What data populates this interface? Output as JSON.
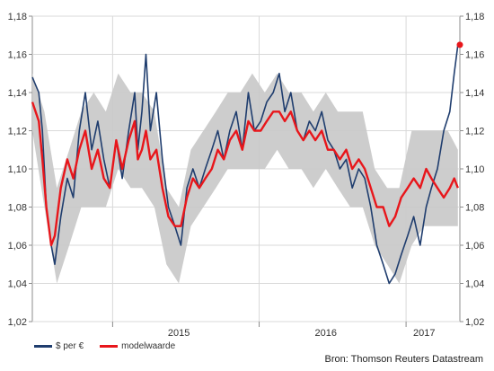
{
  "chart_data": {
    "type": "line",
    "title": "",
    "xlabel": "",
    "ylabel": "",
    "ylim": [
      1.02,
      1.18
    ],
    "y_ticks": [
      "1,02",
      "1,04",
      "1,06",
      "1,08",
      "1,10",
      "1,12",
      "1,14",
      "1,16",
      "1,18"
    ],
    "y_tick_values": [
      1.02,
      1.04,
      1.06,
      1.08,
      1.1,
      1.12,
      1.14,
      1.16,
      1.18
    ],
    "xlim": [
      "2014-06-15",
      "2017-05-15"
    ],
    "x_ticks": [
      "2015",
      "2016",
      "2017"
    ],
    "x_tick_positions": [
      "2015-06-15",
      "2016-06-15",
      "2017-02-15"
    ],
    "x_gridlines": [
      "2015-01-01",
      "2016-01-01",
      "2017-01-01"
    ],
    "grid": true,
    "legend_position": "bottom-left",
    "band": {
      "name": "",
      "color": "#c8c8c8",
      "x": [
        "2014-06-15",
        "2014-07-15",
        "2014-08-15",
        "2014-09-15",
        "2014-10-15",
        "2014-11-15",
        "2014-12-15",
        "2015-01-15",
        "2015-02-15",
        "2015-03-15",
        "2015-04-15",
        "2015-05-15",
        "2015-06-15",
        "2015-07-15",
        "2015-08-15",
        "2015-09-15",
        "2015-10-15",
        "2015-11-15",
        "2015-12-15",
        "2016-01-15",
        "2016-02-15",
        "2016-03-15",
        "2016-04-15",
        "2016-05-15",
        "2016-06-15",
        "2016-07-15",
        "2016-08-15",
        "2016-09-15",
        "2016-10-15",
        "2016-11-15",
        "2016-12-15",
        "2017-01-15",
        "2017-02-15",
        "2017-03-15",
        "2017-04-15",
        "2017-05-10"
      ],
      "lower": [
        1.12,
        1.08,
        1.04,
        1.06,
        1.08,
        1.08,
        1.08,
        1.1,
        1.09,
        1.09,
        1.08,
        1.05,
        1.04,
        1.07,
        1.08,
        1.09,
        1.1,
        1.1,
        1.1,
        1.1,
        1.11,
        1.1,
        1.1,
        1.09,
        1.1,
        1.09,
        1.08,
        1.08,
        1.06,
        1.05,
        1.04,
        1.06,
        1.07,
        1.07,
        1.07,
        1.07
      ],
      "upper": [
        1.15,
        1.13,
        1.09,
        1.11,
        1.13,
        1.14,
        1.13,
        1.15,
        1.14,
        1.14,
        1.13,
        1.09,
        1.08,
        1.11,
        1.12,
        1.13,
        1.14,
        1.14,
        1.15,
        1.14,
        1.15,
        1.14,
        1.14,
        1.13,
        1.14,
        1.13,
        1.13,
        1.13,
        1.1,
        1.09,
        1.09,
        1.12,
        1.12,
        1.12,
        1.12,
        1.11
      ]
    },
    "series": [
      {
        "name": "$ per €",
        "color": "#1f3d6e",
        "x": [
          "2014-06-15",
          "2014-07-01",
          "2014-07-10",
          "2014-07-20",
          "2014-08-01",
          "2014-08-10",
          "2014-08-25",
          "2014-09-10",
          "2014-09-25",
          "2014-10-10",
          "2014-10-25",
          "2014-11-10",
          "2014-11-25",
          "2014-12-10",
          "2014-12-25",
          "2015-01-10",
          "2015-01-25",
          "2015-02-10",
          "2015-02-25",
          "2015-03-05",
          "2015-03-15",
          "2015-03-25",
          "2015-04-05",
          "2015-04-20",
          "2015-05-05",
          "2015-05-20",
          "2015-06-05",
          "2015-06-20",
          "2015-07-05",
          "2015-07-20",
          "2015-08-05",
          "2015-08-20",
          "2015-09-05",
          "2015-09-20",
          "2015-10-05",
          "2015-10-20",
          "2015-11-05",
          "2015-11-20",
          "2015-12-05",
          "2015-12-20",
          "2016-01-05",
          "2016-01-20",
          "2016-02-05",
          "2016-02-20",
          "2016-03-05",
          "2016-03-20",
          "2016-04-05",
          "2016-04-20",
          "2016-05-05",
          "2016-05-20",
          "2016-06-05",
          "2016-06-20",
          "2016-07-05",
          "2016-07-20",
          "2016-08-05",
          "2016-08-20",
          "2016-09-05",
          "2016-09-20",
          "2016-10-05",
          "2016-10-20",
          "2016-11-05",
          "2016-11-20",
          "2016-12-05",
          "2016-12-20",
          "2017-01-05",
          "2017-01-20",
          "2017-02-05",
          "2017-02-20",
          "2017-03-05",
          "2017-03-20",
          "2017-04-05",
          "2017-04-20",
          "2017-05-01",
          "2017-05-10"
        ],
        "y": [
          1.148,
          1.14,
          1.12,
          1.08,
          1.06,
          1.05,
          1.075,
          1.095,
          1.085,
          1.12,
          1.14,
          1.11,
          1.125,
          1.105,
          1.09,
          1.115,
          1.095,
          1.12,
          1.14,
          1.11,
          1.13,
          1.16,
          1.12,
          1.14,
          1.105,
          1.08,
          1.07,
          1.06,
          1.09,
          1.1,
          1.09,
          1.1,
          1.11,
          1.12,
          1.105,
          1.12,
          1.13,
          1.11,
          1.14,
          1.12,
          1.125,
          1.135,
          1.14,
          1.15,
          1.13,
          1.14,
          1.12,
          1.115,
          1.125,
          1.12,
          1.13,
          1.115,
          1.11,
          1.1,
          1.105,
          1.09,
          1.1,
          1.095,
          1.08,
          1.06,
          1.05,
          1.04,
          1.045,
          1.055,
          1.065,
          1.075,
          1.06,
          1.08,
          1.09,
          1.1,
          1.12,
          1.13,
          1.15,
          1.165
        ]
      },
      {
        "name": "modelwaarde",
        "color": "#e8161b",
        "x": [
          "2014-06-15",
          "2014-07-01",
          "2014-07-10",
          "2014-07-20",
          "2014-08-01",
          "2014-08-10",
          "2014-08-25",
          "2014-09-10",
          "2014-09-25",
          "2014-10-10",
          "2014-10-25",
          "2014-11-10",
          "2014-11-25",
          "2014-12-10",
          "2014-12-25",
          "2015-01-10",
          "2015-01-25",
          "2015-02-10",
          "2015-02-25",
          "2015-03-05",
          "2015-03-15",
          "2015-03-25",
          "2015-04-05",
          "2015-04-20",
          "2015-05-05",
          "2015-05-20",
          "2015-06-05",
          "2015-06-20",
          "2015-07-05",
          "2015-07-20",
          "2015-08-05",
          "2015-08-20",
          "2015-09-05",
          "2015-09-20",
          "2015-10-05",
          "2015-10-20",
          "2015-11-05",
          "2015-11-20",
          "2015-12-05",
          "2015-12-20",
          "2016-01-05",
          "2016-01-20",
          "2016-02-05",
          "2016-02-20",
          "2016-03-05",
          "2016-03-20",
          "2016-04-05",
          "2016-04-20",
          "2016-05-05",
          "2016-05-20",
          "2016-06-05",
          "2016-06-20",
          "2016-07-05",
          "2016-07-20",
          "2016-08-05",
          "2016-08-20",
          "2016-09-05",
          "2016-09-20",
          "2016-10-05",
          "2016-10-20",
          "2016-11-05",
          "2016-11-20",
          "2016-12-05",
          "2016-12-20",
          "2017-01-05",
          "2017-01-20",
          "2017-02-05",
          "2017-02-20",
          "2017-03-05",
          "2017-03-20",
          "2017-04-05",
          "2017-04-20",
          "2017-05-01",
          "2017-05-10"
        ],
        "y": [
          1.135,
          1.125,
          1.105,
          1.08,
          1.06,
          1.065,
          1.09,
          1.105,
          1.095,
          1.11,
          1.12,
          1.1,
          1.11,
          1.095,
          1.09,
          1.115,
          1.1,
          1.115,
          1.125,
          1.105,
          1.11,
          1.12,
          1.105,
          1.11,
          1.09,
          1.075,
          1.07,
          1.07,
          1.085,
          1.095,
          1.09,
          1.095,
          1.1,
          1.11,
          1.105,
          1.115,
          1.12,
          1.11,
          1.125,
          1.12,
          1.12,
          1.125,
          1.13,
          1.13,
          1.125,
          1.13,
          1.12,
          1.115,
          1.12,
          1.115,
          1.12,
          1.11,
          1.11,
          1.105,
          1.11,
          1.1,
          1.105,
          1.1,
          1.09,
          1.08,
          1.08,
          1.07,
          1.075,
          1.085,
          1.09,
          1.095,
          1.09,
          1.1,
          1.095,
          1.09,
          1.085,
          1.09,
          1.095,
          1.09
        ]
      }
    ],
    "marker": {
      "x": "2017-05-15",
      "y": 1.165,
      "color": "#e8161b"
    }
  },
  "source": "Bron: Thomson Reuters Datastream"
}
